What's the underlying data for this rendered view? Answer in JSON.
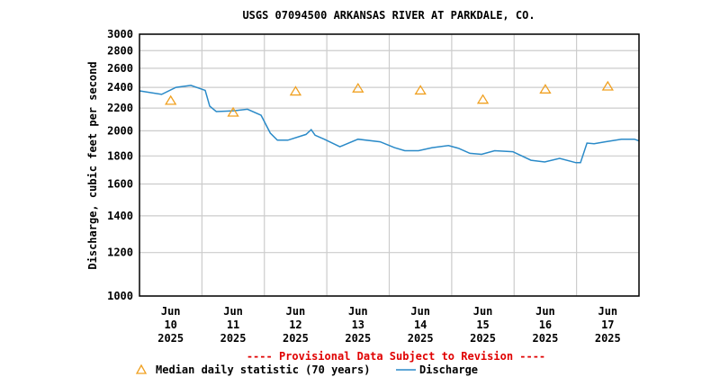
{
  "chart_data": {
    "type": "line",
    "title": "USGS 07094500 ARKANSAS RIVER AT PARKDALE, CO.",
    "ylabel": "Discharge, cubic feet per second",
    "xlabel": "",
    "y_scale": "log",
    "ylim": [
      1000,
      3000
    ],
    "y_ticks": [
      1000,
      1200,
      1400,
      1600,
      1800,
      2000,
      2200,
      2400,
      2600,
      2800,
      3000
    ],
    "xlim": [
      "2025-06-10 00:00",
      "2025-06-18 00:00"
    ],
    "x_ticks": [
      {
        "month": "Jun",
        "day": "10",
        "year": "2025"
      },
      {
        "month": "Jun",
        "day": "11",
        "year": "2025"
      },
      {
        "month": "Jun",
        "day": "12",
        "year": "2025"
      },
      {
        "month": "Jun",
        "day": "13",
        "year": "2025"
      },
      {
        "month": "Jun",
        "day": "14",
        "year": "2025"
      },
      {
        "month": "Jun",
        "day": "15",
        "year": "2025"
      },
      {
        "month": "Jun",
        "day": "16",
        "year": "2025"
      },
      {
        "month": "Jun",
        "day": "17",
        "year": "2025"
      }
    ],
    "grid": true,
    "provisional_note": "---- Provisional Data Subject to Revision ----",
    "colors": {
      "discharge": "#2a8ac8",
      "median": "#f0a020",
      "note": "#e00000",
      "grid": "#cccccc"
    },
    "series": [
      {
        "name": "Discharge",
        "style": "line",
        "x": [
          "2025-06-10 00:00",
          "2025-06-10 08:30",
          "2025-06-10 14:00",
          "2025-06-10 19:45",
          "2025-06-11 01:15",
          "2025-06-11 03:00",
          "2025-06-11 05:30",
          "2025-06-11 12:15",
          "2025-06-11 17:30",
          "2025-06-11 22:45",
          "2025-06-12 02:15",
          "2025-06-12 05:00",
          "2025-06-12 09:00",
          "2025-06-12 16:00",
          "2025-06-12 18:00",
          "2025-06-12 19:30",
          "2025-06-12 23:00",
          "2025-06-13 05:00",
          "2025-06-13 12:00",
          "2025-06-13 20:30",
          "2025-06-14 02:00",
          "2025-06-14 06:00",
          "2025-06-14 11:15",
          "2025-06-14 16:30",
          "2025-06-14 22:45",
          "2025-06-15 02:45",
          "2025-06-15 07:00",
          "2025-06-15 11:30",
          "2025-06-15 16:30",
          "2025-06-15 23:30",
          "2025-06-16 06:30",
          "2025-06-16 11:45",
          "2025-06-16 17:30",
          "2025-06-16 23:45",
          "2025-06-17 01:30",
          "2025-06-17 04:00",
          "2025-06-17 06:45",
          "2025-06-17 11:00",
          "2025-06-17 17:15",
          "2025-06-17 22:15",
          "2025-06-18 00:00"
        ],
        "y": [
          2365,
          2330,
          2400,
          2420,
          2370,
          2218,
          2168,
          2176,
          2190,
          2135,
          1981,
          1923,
          1923,
          1970,
          2010,
          1963,
          1931,
          1871,
          1931,
          1910,
          1864,
          1840,
          1840,
          1864,
          1880,
          1858,
          1820,
          1812,
          1840,
          1832,
          1768,
          1755,
          1782,
          1750,
          1750,
          1900,
          1895,
          1910,
          1931,
          1931,
          1917
        ]
      },
      {
        "name": "Median daily statistic (70 years)",
        "style": "triangle",
        "x": [
          "2025-06-10 12:00",
          "2025-06-11 12:00",
          "2025-06-12 12:00",
          "2025-06-13 12:00",
          "2025-06-14 12:00",
          "2025-06-15 12:00",
          "2025-06-16 12:00",
          "2025-06-17 12:00"
        ],
        "y": [
          2270,
          2160,
          2360,
          2390,
          2370,
          2280,
          2380,
          2410
        ]
      }
    ]
  }
}
